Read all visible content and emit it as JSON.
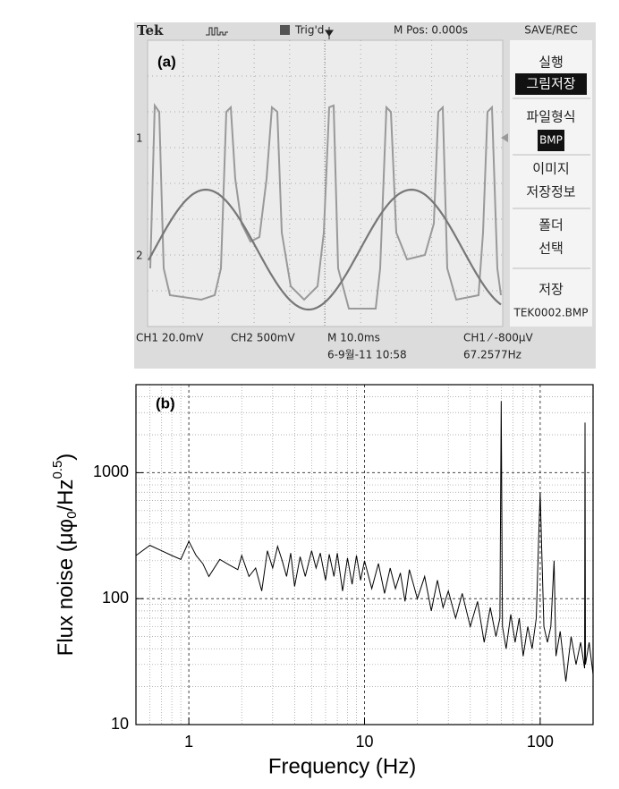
{
  "screenshot": {
    "label": "(a)",
    "header": {
      "brand": "Tek",
      "trigger": "Trig'd",
      "position": "M Pos: 0.000s",
      "menu_title": "SAVE/REC"
    },
    "menu": [
      "실행",
      "그림저장",
      "파일형식",
      "BMP",
      "이미지",
      "저장정보",
      "폴더",
      "선택",
      "저장",
      "TEK0002.BMP"
    ],
    "channel_markers": [
      "1",
      "2"
    ],
    "footer": {
      "ch1": "CH1  20.0mV",
      "ch2": "CH2  500mV",
      "timebase": "M 10.0ms",
      "trigger_level": "CH1 ⁄ -800μV",
      "date": "6-9월-11 10:58",
      "frequency": "67.2577Hz"
    }
  },
  "chart_data": {
    "type": "line",
    "label": "(b)",
    "xlabel": "Frequency (Hz)",
    "ylabel": {
      "main": "Flux noise (μφ",
      "sub": "0",
      "mid": "/Hz",
      "sup": "0.5",
      "end": ")"
    },
    "xscale": "log",
    "yscale": "log",
    "grid": true,
    "color": "#000000",
    "xlim": [
      0.5,
      200
    ],
    "ylim": [
      10,
      5000
    ],
    "xticks": [
      1,
      10,
      100
    ],
    "yticks": [
      10,
      100,
      1000
    ],
    "xminorticks": [
      0.6,
      0.7,
      0.8,
      0.9,
      2,
      3,
      4,
      5,
      6,
      7,
      8,
      9,
      20,
      30,
      40,
      50,
      60,
      70,
      80,
      90
    ],
    "yminorticks": [
      20,
      30,
      40,
      50,
      60,
      70,
      80,
      90,
      200,
      300,
      400,
      500,
      600,
      700,
      800,
      900,
      2000,
      3000,
      4000
    ],
    "x": [
      0.5,
      0.6,
      0.7,
      0.8,
      0.9,
      1.0,
      1.1,
      1.2,
      1.3,
      1.5,
      1.7,
      1.9,
      2.0,
      2.2,
      2.4,
      2.6,
      2.8,
      3.0,
      3.2,
      3.4,
      3.6,
      3.8,
      4.0,
      4.3,
      4.6,
      5.0,
      5.3,
      5.6,
      6.0,
      6.3,
      6.7,
      7.0,
      7.5,
      8.0,
      8.5,
      9.0,
      9.5,
      10,
      11,
      12,
      13,
      14,
      15,
      16,
      17,
      18,
      20,
      22,
      24,
      26,
      28,
      30,
      33,
      36,
      40,
      44,
      48,
      52,
      56,
      59,
      60,
      61,
      64,
      68,
      72,
      76,
      80,
      85,
      90,
      95,
      98,
      100,
      102,
      105,
      110,
      115,
      120,
      123,
      130,
      140,
      150,
      160,
      170,
      179,
      180,
      181,
      190,
      200
    ],
    "values": [
      220,
      265,
      240,
      220,
      205,
      285,
      220,
      190,
      150,
      205,
      185,
      170,
      220,
      150,
      175,
      115,
      240,
      175,
      260,
      200,
      150,
      230,
      125,
      215,
      150,
      240,
      175,
      230,
      140,
      225,
      150,
      230,
      115,
      210,
      130,
      220,
      140,
      200,
      120,
      190,
      110,
      175,
      120,
      160,
      95,
      170,
      100,
      150,
      80,
      140,
      85,
      115,
      70,
      110,
      60,
      95,
      45,
      85,
      50,
      70,
      3700,
      60,
      40,
      75,
      45,
      70,
      35,
      60,
      40,
      70,
      300,
      700,
      250,
      60,
      45,
      60,
      200,
      35,
      55,
      22,
      50,
      30,
      45,
      28,
      2500,
      30,
      45,
      25
    ]
  }
}
